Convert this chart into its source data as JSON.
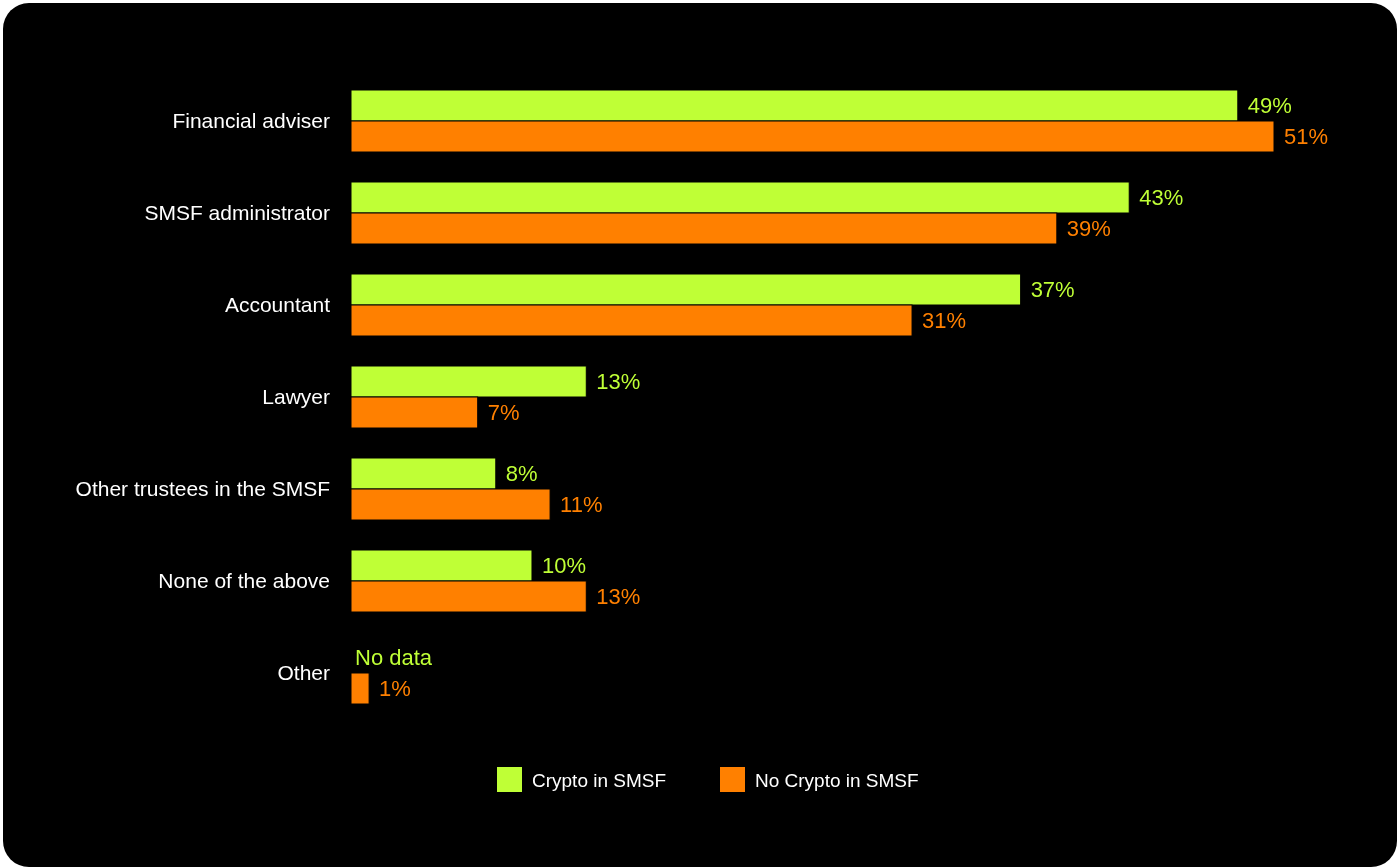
{
  "chart_data": {
    "type": "bar",
    "orientation": "horizontal",
    "categories": [
      "Financial adviser",
      "SMSF administrator",
      "Accountant",
      "Lawyer",
      "Other trustees in the SMSF",
      "None of the above",
      "Other"
    ],
    "series": [
      {
        "name": "Crypto in SMSF",
        "color": "#bfff36",
        "values": [
          49,
          43,
          37,
          13,
          8,
          10,
          null
        ],
        "value_labels": [
          "49%",
          "43%",
          "37%",
          "13%",
          "8%",
          "10%",
          "No data"
        ]
      },
      {
        "name": "No Crypto in SMSF",
        "color": "#ff8000",
        "values": [
          51,
          39,
          31,
          7,
          11,
          13,
          1
        ],
        "value_labels": [
          "51%",
          "39%",
          "31%",
          "7%",
          "11%",
          "13%",
          "1%"
        ]
      }
    ],
    "legend": "bottom"
  }
}
